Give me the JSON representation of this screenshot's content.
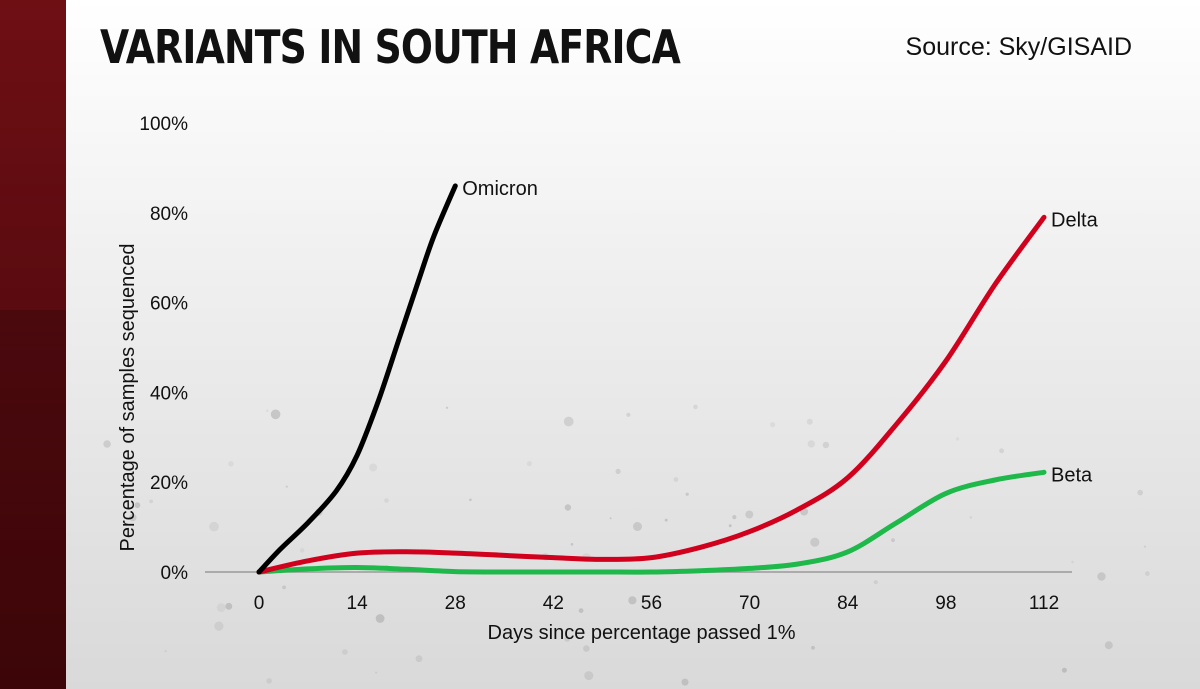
{
  "header": {
    "title": "VARIANTS IN SOUTH AFRICA",
    "source": "Source: Sky/GISAID"
  },
  "chart_data": {
    "type": "line",
    "title": "VARIANTS IN SOUTH AFRICA",
    "xlabel": "Days since percentage passed 1%",
    "ylabel": "Percentage of samples sequenced",
    "xticks": [
      0,
      14,
      28,
      42,
      56,
      70,
      84,
      98,
      112
    ],
    "yticks": [
      0,
      20,
      40,
      60,
      80,
      100
    ],
    "ytick_labels": [
      "0%",
      "20%",
      "40%",
      "60%",
      "80%",
      "100%"
    ],
    "xlim": [
      0,
      112
    ],
    "ylim": [
      0,
      100
    ],
    "grid": false,
    "legend": "none",
    "series": [
      {
        "name": "Omicron",
        "color": "#000000",
        "x": [
          0,
          3,
          7,
          11,
          14,
          17,
          20,
          23,
          25,
          28
        ],
        "y": [
          0,
          5,
          11,
          18,
          26,
          38,
          52,
          66,
          75,
          86
        ]
      },
      {
        "name": "Delta",
        "color": "#d1001c",
        "x": [
          0,
          7,
          14,
          21,
          28,
          35,
          42,
          49,
          56,
          63,
          70,
          77,
          84,
          91,
          98,
          105,
          112
        ],
        "y": [
          0,
          2.5,
          4.2,
          4.5,
          4.2,
          3.7,
          3.2,
          2.8,
          3.2,
          5.5,
          9,
          14,
          21,
          33,
          47,
          64,
          79
        ]
      },
      {
        "name": "Beta",
        "color": "#1fb84a",
        "x": [
          0,
          7,
          14,
          21,
          28,
          35,
          42,
          49,
          56,
          63,
          70,
          77,
          84,
          91,
          98,
          105,
          112
        ],
        "y": [
          0,
          0.7,
          1,
          0.6,
          0.1,
          0,
          0,
          0,
          0,
          0.3,
          0.8,
          1.8,
          4.5,
          11,
          17.5,
          20.5,
          22.2
        ]
      }
    ]
  }
}
